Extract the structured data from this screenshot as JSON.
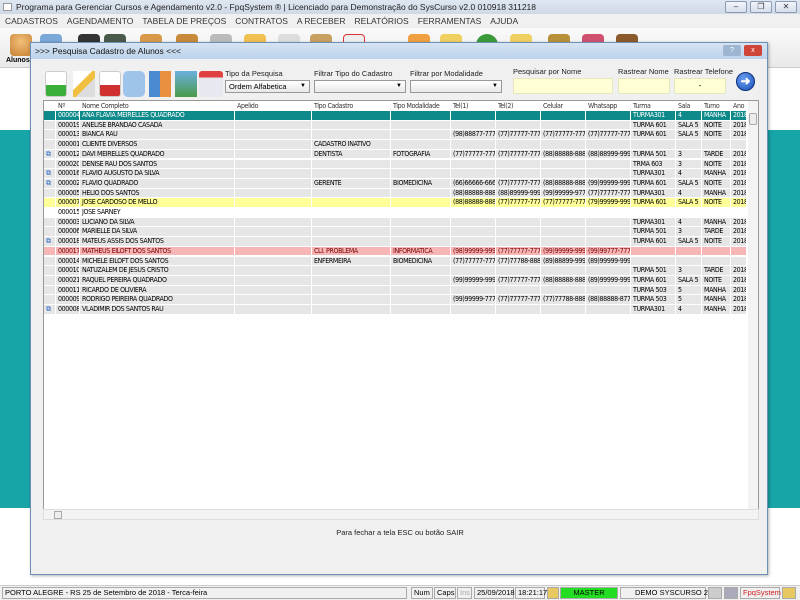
{
  "window": {
    "title": "Programa para Gerenciar Cursos e Agendamento v2.0 - FpqSystem ® | Licenciado para  Demonstração do SysCurso v2.0 010918 311218"
  },
  "menu": [
    "CADASTROS",
    "AGENDAMENTO",
    "TABELA DE PREÇOS",
    "CONTRATOS",
    "A RECEBER",
    "RELATÓRIOS",
    "FERRAMENTAS",
    "AJUDA"
  ],
  "toolbar": {
    "alunos_label": "Alunos"
  },
  "dialog": {
    "title": ">>> Pesquisa Cadastro de Alunos <<<",
    "help": "?",
    "close": "x",
    "filters": {
      "tipo_pesquisa_label": "Tipo da Pesquisa",
      "tipo_pesquisa_value": "Ordem Alfabetica",
      "tipo_cadastro_label": "Filtrar Tipo do Cadastro",
      "tipo_cadastro_value": "",
      "modalidade_label": "Filtrar por Modalidade",
      "modalidade_value": "",
      "pesquisar_nome_label": "Pesquisar por Nome",
      "pesquisar_nome_value": "",
      "rastrear_nome_label": "Rastrear Nome",
      "rastrear_nome_value": "",
      "rastrear_telefone_label": "Rastrear Telefone",
      "rastrear_telefone_value": "-"
    },
    "columns": [
      "",
      "Nº",
      "Nome Completo",
      "Apelido",
      "Tipo Cadastro",
      "Tipo Modalidade",
      "Tel(1)",
      "Tel(2)",
      "Celular",
      "Whatsapp",
      "Turma",
      "Sala",
      "Turno",
      "Ano"
    ],
    "rows": [
      {
        "style": "sel",
        "icon": false,
        "cells": [
          "000004",
          "ANA FLAVIA MEIRELLES QUADRADO",
          "",
          "",
          "",
          "",
          "",
          "",
          "",
          "TURMA301",
          "4",
          "MANHÃ",
          "2018"
        ]
      },
      {
        "style": "",
        "icon": false,
        "cells": [
          "000019",
          "ANELISE BRANDAO CASADA",
          "",
          "",
          "",
          "",
          "",
          "",
          "",
          "TURMA 601",
          "SALA 5",
          "NOITE",
          "2018"
        ]
      },
      {
        "style": "",
        "icon": false,
        "cells": [
          "000013",
          "BIANCA RAU",
          "",
          "",
          "",
          "(98)88877-7777",
          "(77)77777-7777",
          "(77)77777-7777",
          "(77)77777-7777",
          "TURMA 601",
          "SALA 5",
          "NOITE",
          "2018"
        ]
      },
      {
        "style": "",
        "icon": false,
        "cells": [
          "000001",
          "CLIENTE DIVERSOS",
          "",
          "CADASTRO INATIVO",
          "",
          "",
          "",
          "",
          "",
          "",
          "",
          "",
          ""
        ]
      },
      {
        "style": "",
        "icon": true,
        "cells": [
          "000012",
          "DAVI MEIRELLES QUADRADO",
          "",
          "DENTISTA",
          "FOTOGRAFIA",
          "(77)77777-7777",
          "(77)77777-7777",
          "(88)88888-8888",
          "(88)88999-9999",
          "TURMA 501",
          "3",
          "TARDE",
          "2018"
        ]
      },
      {
        "style": "",
        "icon": false,
        "cells": [
          "000020",
          "DENISE RAU DOS SANTOS",
          "",
          "",
          "",
          "",
          "",
          "",
          "",
          "TRMA 603",
          "3",
          "NOITE",
          "2018"
        ]
      },
      {
        "style": "",
        "icon": true,
        "cells": [
          "000016",
          "FLAVIO AUGUSTO DA SILVA",
          "",
          "",
          "",
          "",
          "",
          "",
          "",
          "TURMA301",
          "4",
          "MANHÃ",
          "2018"
        ]
      },
      {
        "style": "",
        "icon": true,
        "cells": [
          "000002",
          "FLAVIO QUADRADO",
          "",
          "GERENTE",
          "BIOMEDICINA",
          "(66)66666-6666",
          "(77)77777-7777",
          "(88)88888-8889",
          "(99)99999-9999",
          "TURMA 601",
          "SALA 5",
          "NOITE",
          "2018"
        ]
      },
      {
        "style": "",
        "icon": false,
        "cells": [
          "000005",
          "HELIO DOS SANTOS",
          "",
          "",
          "",
          "(88)88888-8888",
          "(88)89999-9999",
          "(99)99999-9777",
          "(77)77777-7777",
          "TURMA301",
          "4",
          "MANHÃ",
          "2018"
        ]
      },
      {
        "style": "yel",
        "icon": false,
        "cells": [
          "000007",
          "JOSE CARDOSO DE MELLO",
          "",
          "",
          "",
          "(88)88888-8887",
          "(77)77777-7777",
          "(77)77777-7777",
          "(79)99999-9999",
          "TURMA 601",
          "SALA 5",
          "NOITE",
          "2018"
        ]
      },
      {
        "style": "white",
        "icon": false,
        "cells": [
          "000015",
          "JOSE SARNEY",
          "",
          "",
          "",
          "",
          "",
          "",
          "",
          "",
          "",
          "",
          ""
        ]
      },
      {
        "style": "",
        "icon": false,
        "cells": [
          "000003",
          "LUCIANO DA SILVA",
          "",
          "",
          "",
          "",
          "",
          "",
          "",
          "TURMA301",
          "4",
          "MANHÃ",
          "2018"
        ]
      },
      {
        "style": "",
        "icon": false,
        "cells": [
          "000006",
          "MARIELLE DA SILVA",
          "",
          "",
          "",
          "",
          "",
          "",
          "",
          "TURMA 501",
          "3",
          "TARDE",
          "2018"
        ]
      },
      {
        "style": "",
        "icon": true,
        "cells": [
          "000018",
          "MATEUS ASSIS DOS SANTOS",
          "",
          "",
          "",
          "",
          "",
          "",
          "",
          "TURMA 601",
          "SALA 5",
          "NOITE",
          "2018"
        ]
      },
      {
        "style": "pink",
        "icon": false,
        "cells": [
          "000017",
          "MATHEUS EILOFT DOS SANTOS",
          "",
          "CLI. PROBLEMA",
          "INFORMATICA",
          "(98)99999-9997",
          "(77)77777-7779",
          "(99)99999-9999",
          "(99)99777-7777",
          "",
          "",
          "",
          ""
        ]
      },
      {
        "style": "",
        "icon": false,
        "cells": [
          "000014",
          "MICHELE EILOFT DOS SANTOS",
          "",
          "ENFERMEIRA",
          "BIOMEDICINA",
          "(77)77777-7777",
          "(77)77788-8888",
          "(89)88899-9999",
          "(89)99999-9999",
          "",
          "",
          "",
          ""
        ]
      },
      {
        "style": "",
        "icon": false,
        "cells": [
          "000010",
          "NATUZALEM DE JESUS CRISTO",
          "",
          "",
          "",
          "",
          "",
          "",
          "",
          "TURMA 501",
          "3",
          "TARDE",
          "2018"
        ]
      },
      {
        "style": "",
        "icon": false,
        "cells": [
          "000021",
          "RAQUEL PEREIRA QUADRADO",
          "",
          "",
          "",
          "(99)99999-9997",
          "(77)77777-7777",
          "(88)88888-8888",
          "(89)99999-9999",
          "TURMA 601",
          "SALA 5",
          "NOITE",
          "2018"
        ]
      },
      {
        "style": "",
        "icon": false,
        "cells": [
          "000011",
          "RICARDO DE OLIVIERA",
          "",
          "",
          "",
          "",
          "",
          "",
          "",
          "TURMA 503",
          "5",
          "MANHÃ",
          "2018"
        ]
      },
      {
        "style": "",
        "icon": false,
        "cells": [
          "000009",
          "RODRIGO PEIREIRA QUADRADO",
          "",
          "",
          "",
          "(99)99999-7777",
          "(77)77777-7777",
          "(77)77788-8888",
          "(88)88888-8777",
          "TURMA 503",
          "5",
          "MANHÃ",
          "2018"
        ]
      },
      {
        "style": "",
        "icon": true,
        "cells": [
          "000008",
          "VLADIMIR DOS SANTOS RAU",
          "",
          "",
          "",
          "",
          "",
          "",
          "",
          "TURMA301",
          "4",
          "MANHÃ",
          "2018"
        ]
      }
    ],
    "hint": "Para fechar a tela ESC ou botão SAIR"
  },
  "statusbar": {
    "location": "PORTO ALEGRE - RS 25 de Setembro de 2018 - Terca-feira",
    "num": "Num",
    "caps": "Caps",
    "ins": "Ins",
    "date": "25/09/2018",
    "time": "18:21:17",
    "user": "MASTER",
    "company": "DEMO SYSCURSO 2.0",
    "brand": "FpqSystem"
  },
  "colors": {
    "selected_row": "#0f8a8a",
    "highlight_yellow": "#ffff99",
    "problem_row": "#f7b6b6",
    "background_teal": "#17a5a8",
    "user_green": "#22dd22"
  }
}
